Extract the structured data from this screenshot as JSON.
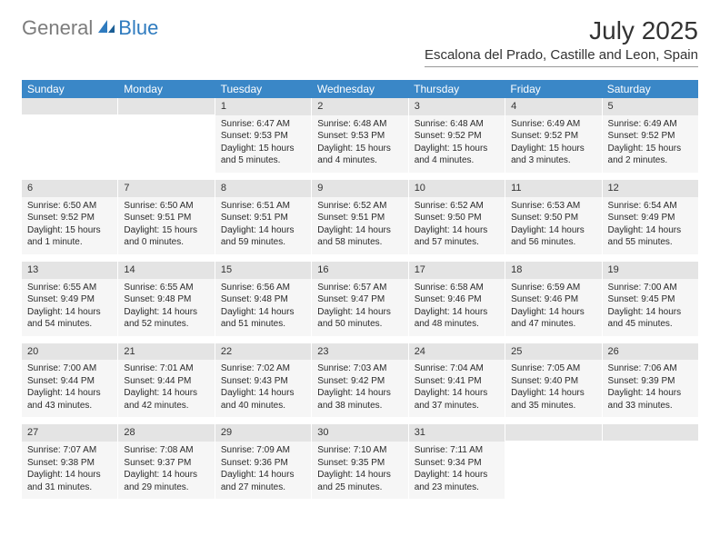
{
  "logo": {
    "general": "General",
    "blue": "Blue"
  },
  "title": "July 2025",
  "location": "Escalona del Prado, Castille and Leon, Spain",
  "day_headers": [
    "Sunday",
    "Monday",
    "Tuesday",
    "Wednesday",
    "Thursday",
    "Friday",
    "Saturday"
  ],
  "colors": {
    "header_bg": "#3a87c7",
    "header_text": "#ffffff",
    "daynum_bg": "#e4e4e4",
    "cell_bg": "#f6f6f6",
    "text": "#2a2a2a",
    "logo_gray": "#7c7c7c",
    "logo_blue": "#2f7bbf"
  },
  "weeks": [
    [
      {
        "blank": true
      },
      {
        "blank": true
      },
      {
        "day": "1",
        "sunrise": "Sunrise: 6:47 AM",
        "sunset": "Sunset: 9:53 PM",
        "daylight": "Daylight: 15 hours and 5 minutes."
      },
      {
        "day": "2",
        "sunrise": "Sunrise: 6:48 AM",
        "sunset": "Sunset: 9:53 PM",
        "daylight": "Daylight: 15 hours and 4 minutes."
      },
      {
        "day": "3",
        "sunrise": "Sunrise: 6:48 AM",
        "sunset": "Sunset: 9:52 PM",
        "daylight": "Daylight: 15 hours and 4 minutes."
      },
      {
        "day": "4",
        "sunrise": "Sunrise: 6:49 AM",
        "sunset": "Sunset: 9:52 PM",
        "daylight": "Daylight: 15 hours and 3 minutes."
      },
      {
        "day": "5",
        "sunrise": "Sunrise: 6:49 AM",
        "sunset": "Sunset: 9:52 PM",
        "daylight": "Daylight: 15 hours and 2 minutes."
      }
    ],
    [
      {
        "day": "6",
        "sunrise": "Sunrise: 6:50 AM",
        "sunset": "Sunset: 9:52 PM",
        "daylight": "Daylight: 15 hours and 1 minute."
      },
      {
        "day": "7",
        "sunrise": "Sunrise: 6:50 AM",
        "sunset": "Sunset: 9:51 PM",
        "daylight": "Daylight: 15 hours and 0 minutes."
      },
      {
        "day": "8",
        "sunrise": "Sunrise: 6:51 AM",
        "sunset": "Sunset: 9:51 PM",
        "daylight": "Daylight: 14 hours and 59 minutes."
      },
      {
        "day": "9",
        "sunrise": "Sunrise: 6:52 AM",
        "sunset": "Sunset: 9:51 PM",
        "daylight": "Daylight: 14 hours and 58 minutes."
      },
      {
        "day": "10",
        "sunrise": "Sunrise: 6:52 AM",
        "sunset": "Sunset: 9:50 PM",
        "daylight": "Daylight: 14 hours and 57 minutes."
      },
      {
        "day": "11",
        "sunrise": "Sunrise: 6:53 AM",
        "sunset": "Sunset: 9:50 PM",
        "daylight": "Daylight: 14 hours and 56 minutes."
      },
      {
        "day": "12",
        "sunrise": "Sunrise: 6:54 AM",
        "sunset": "Sunset: 9:49 PM",
        "daylight": "Daylight: 14 hours and 55 minutes."
      }
    ],
    [
      {
        "day": "13",
        "sunrise": "Sunrise: 6:55 AM",
        "sunset": "Sunset: 9:49 PM",
        "daylight": "Daylight: 14 hours and 54 minutes."
      },
      {
        "day": "14",
        "sunrise": "Sunrise: 6:55 AM",
        "sunset": "Sunset: 9:48 PM",
        "daylight": "Daylight: 14 hours and 52 minutes."
      },
      {
        "day": "15",
        "sunrise": "Sunrise: 6:56 AM",
        "sunset": "Sunset: 9:48 PM",
        "daylight": "Daylight: 14 hours and 51 minutes."
      },
      {
        "day": "16",
        "sunrise": "Sunrise: 6:57 AM",
        "sunset": "Sunset: 9:47 PM",
        "daylight": "Daylight: 14 hours and 50 minutes."
      },
      {
        "day": "17",
        "sunrise": "Sunrise: 6:58 AM",
        "sunset": "Sunset: 9:46 PM",
        "daylight": "Daylight: 14 hours and 48 minutes."
      },
      {
        "day": "18",
        "sunrise": "Sunrise: 6:59 AM",
        "sunset": "Sunset: 9:46 PM",
        "daylight": "Daylight: 14 hours and 47 minutes."
      },
      {
        "day": "19",
        "sunrise": "Sunrise: 7:00 AM",
        "sunset": "Sunset: 9:45 PM",
        "daylight": "Daylight: 14 hours and 45 minutes."
      }
    ],
    [
      {
        "day": "20",
        "sunrise": "Sunrise: 7:00 AM",
        "sunset": "Sunset: 9:44 PM",
        "daylight": "Daylight: 14 hours and 43 minutes."
      },
      {
        "day": "21",
        "sunrise": "Sunrise: 7:01 AM",
        "sunset": "Sunset: 9:44 PM",
        "daylight": "Daylight: 14 hours and 42 minutes."
      },
      {
        "day": "22",
        "sunrise": "Sunrise: 7:02 AM",
        "sunset": "Sunset: 9:43 PM",
        "daylight": "Daylight: 14 hours and 40 minutes."
      },
      {
        "day": "23",
        "sunrise": "Sunrise: 7:03 AM",
        "sunset": "Sunset: 9:42 PM",
        "daylight": "Daylight: 14 hours and 38 minutes."
      },
      {
        "day": "24",
        "sunrise": "Sunrise: 7:04 AM",
        "sunset": "Sunset: 9:41 PM",
        "daylight": "Daylight: 14 hours and 37 minutes."
      },
      {
        "day": "25",
        "sunrise": "Sunrise: 7:05 AM",
        "sunset": "Sunset: 9:40 PM",
        "daylight": "Daylight: 14 hours and 35 minutes."
      },
      {
        "day": "26",
        "sunrise": "Sunrise: 7:06 AM",
        "sunset": "Sunset: 9:39 PM",
        "daylight": "Daylight: 14 hours and 33 minutes."
      }
    ],
    [
      {
        "day": "27",
        "sunrise": "Sunrise: 7:07 AM",
        "sunset": "Sunset: 9:38 PM",
        "daylight": "Daylight: 14 hours and 31 minutes."
      },
      {
        "day": "28",
        "sunrise": "Sunrise: 7:08 AM",
        "sunset": "Sunset: 9:37 PM",
        "daylight": "Daylight: 14 hours and 29 minutes."
      },
      {
        "day": "29",
        "sunrise": "Sunrise: 7:09 AM",
        "sunset": "Sunset: 9:36 PM",
        "daylight": "Daylight: 14 hours and 27 minutes."
      },
      {
        "day": "30",
        "sunrise": "Sunrise: 7:10 AM",
        "sunset": "Sunset: 9:35 PM",
        "daylight": "Daylight: 14 hours and 25 minutes."
      },
      {
        "day": "31",
        "sunrise": "Sunrise: 7:11 AM",
        "sunset": "Sunset: 9:34 PM",
        "daylight": "Daylight: 14 hours and 23 minutes."
      },
      {
        "blank": true
      },
      {
        "blank": true
      }
    ]
  ]
}
